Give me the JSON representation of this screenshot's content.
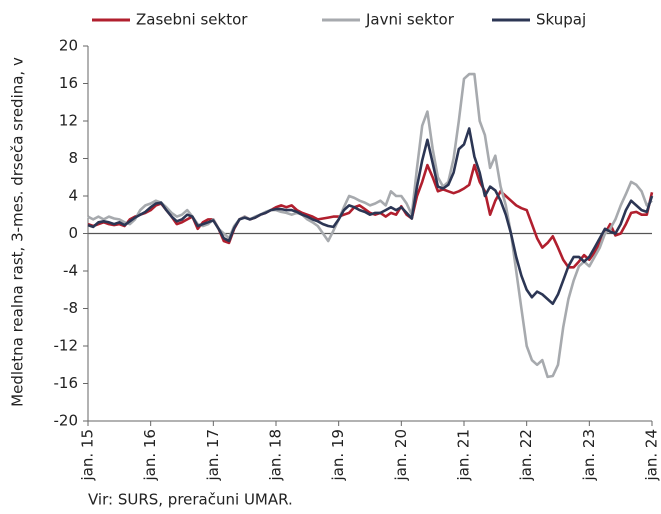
{
  "chart_data": {
    "type": "line",
    "ylabel": "Medletna realna rast, 3-mes. drseča sredina, v",
    "source": "Vir: SURS, preračuni UMAR.",
    "categories": [
      "jan. 15",
      null,
      null,
      null,
      null,
      null,
      null,
      null,
      null,
      null,
      null,
      null,
      "jan. 16",
      null,
      null,
      null,
      null,
      null,
      null,
      null,
      null,
      null,
      null,
      null,
      "jan. 17",
      null,
      null,
      null,
      null,
      null,
      null,
      null,
      null,
      null,
      null,
      null,
      "jan. 18",
      null,
      null,
      null,
      null,
      null,
      null,
      null,
      null,
      null,
      null,
      null,
      "jan. 19",
      null,
      null,
      null,
      null,
      null,
      null,
      null,
      null,
      null,
      null,
      null,
      "jan. 20",
      null,
      null,
      null,
      null,
      null,
      null,
      null,
      null,
      null,
      null,
      null,
      "jan. 21",
      null,
      null,
      null,
      null,
      null,
      null,
      null,
      null,
      null,
      null,
      null,
      "jan. 22",
      null,
      null,
      null,
      null,
      null,
      null,
      null,
      null,
      null,
      null,
      null,
      "jan. 23",
      null,
      null,
      null,
      null,
      null,
      null,
      null,
      null,
      null,
      null,
      null,
      "jan. 24"
    ],
    "series": [
      {
        "name": "Zasebni sektor",
        "color": "#b11f2e",
        "values": [
          1.0,
          0.8,
          1.0,
          1.2,
          1.0,
          0.9,
          1.0,
          0.8,
          1.5,
          1.8,
          2.0,
          2.2,
          2.5,
          3.0,
          3.2,
          2.5,
          1.8,
          1.0,
          1.2,
          1.5,
          1.8,
          0.5,
          1.2,
          1.5,
          1.5,
          0.5,
          -0.8,
          -1.0,
          0.5,
          1.5,
          1.8,
          1.5,
          1.7,
          2.0,
          2.2,
          2.5,
          2.8,
          3.0,
          2.8,
          3.0,
          2.5,
          2.2,
          2.0,
          1.8,
          1.5,
          1.6,
          1.7,
          1.8,
          1.8,
          2.0,
          2.2,
          2.8,
          3.0,
          2.6,
          2.2,
          2.0,
          2.2,
          1.8,
          2.2,
          2.0,
          2.9,
          2.0,
          1.6,
          4.0,
          5.5,
          7.3,
          6.0,
          4.5,
          4.7,
          4.5,
          4.3,
          4.5,
          4.8,
          5.2,
          7.3,
          5.5,
          4.5,
          2.0,
          3.5,
          4.5,
          4.0,
          3.5,
          3.0,
          2.7,
          2.5,
          1.0,
          -0.5,
          -1.5,
          -1.0,
          -0.3,
          -1.5,
          -2.8,
          -3.6,
          -3.6,
          -3.0,
          -2.3,
          -2.8,
          -2.0,
          -1.0,
          0.0,
          1.0,
          -0.2,
          0.0,
          1.0,
          2.2,
          2.3,
          2.0,
          2.0,
          4.4
        ]
      },
      {
        "name": "Javni sektor",
        "color": "#a7aaae",
        "values": [
          1.8,
          1.5,
          1.8,
          1.5,
          1.8,
          1.6,
          1.5,
          1.2,
          1.0,
          1.5,
          2.5,
          3.0,
          3.2,
          3.5,
          3.3,
          2.8,
          2.2,
          1.8,
          2.0,
          2.5,
          1.8,
          1.0,
          0.8,
          1.0,
          1.5,
          0.5,
          0.0,
          -0.5,
          0.8,
          1.5,
          1.8,
          1.5,
          1.8,
          2.0,
          2.3,
          2.5,
          2.5,
          2.3,
          2.2,
          2.0,
          2.2,
          2.0,
          1.5,
          1.2,
          0.8,
          0.0,
          -0.8,
          0.3,
          1.5,
          2.8,
          4.0,
          3.8,
          3.5,
          3.3,
          3.0,
          3.2,
          3.5,
          3.0,
          4.5,
          4.0,
          4.0,
          3.2,
          2.0,
          7.0,
          11.5,
          13.0,
          9.0,
          6.0,
          5.0,
          5.5,
          8.0,
          12.0,
          16.5,
          17.0,
          17.0,
          12.0,
          10.5,
          7.0,
          8.3,
          5.0,
          3.0,
          0.0,
          -4.0,
          -8.0,
          -12.0,
          -13.5,
          -14.0,
          -13.5,
          -15.3,
          -15.2,
          -14.0,
          -10.0,
          -7.0,
          -5.0,
          -3.5,
          -3.0,
          -3.5,
          -2.5,
          -1.5,
          0.0,
          0.5,
          1.5,
          3.0,
          4.2,
          5.5,
          5.2,
          4.5,
          3.0,
          3.5
        ]
      },
      {
        "name": "Skupaj",
        "color": "#2c3654",
        "values": [
          0.9,
          0.7,
          1.2,
          1.3,
          1.2,
          1.0,
          1.2,
          0.9,
          1.3,
          1.7,
          2.0,
          2.3,
          2.8,
          3.2,
          3.3,
          2.5,
          1.8,
          1.3,
          1.5,
          2.0,
          1.8,
          0.8,
          1.0,
          1.2,
          1.4,
          0.5,
          -0.5,
          -0.8,
          0.6,
          1.5,
          1.7,
          1.5,
          1.7,
          2.0,
          2.2,
          2.5,
          2.6,
          2.6,
          2.5,
          2.5,
          2.3,
          2.0,
          1.8,
          1.5,
          1.3,
          1.0,
          0.8,
          0.7,
          1.5,
          2.5,
          3.0,
          2.8,
          2.5,
          2.3,
          2.0,
          2.2,
          2.2,
          2.5,
          2.8,
          2.5,
          2.8,
          2.2,
          1.6,
          5.0,
          7.8,
          10.0,
          7.5,
          5.0,
          4.8,
          5.2,
          6.5,
          9.0,
          9.5,
          11.2,
          8.2,
          6.5,
          4.0,
          5.0,
          4.6,
          3.5,
          2.0,
          0.0,
          -2.5,
          -4.5,
          -6.0,
          -6.8,
          -6.2,
          -6.5,
          -7.0,
          -7.5,
          -6.5,
          -5.0,
          -3.5,
          -2.5,
          -2.5,
          -3.0,
          -2.5,
          -1.5,
          -0.5,
          0.5,
          0.2,
          0.0,
          1.0,
          2.5,
          3.5,
          3.0,
          2.5,
          2.3,
          4.0
        ]
      }
    ],
    "ylim": [
      -20,
      20
    ],
    "yticks": [
      -20,
      -16,
      -12,
      -8,
      -4,
      0,
      4,
      8,
      12,
      16,
      20
    ],
    "grid": false,
    "legend": "top"
  }
}
